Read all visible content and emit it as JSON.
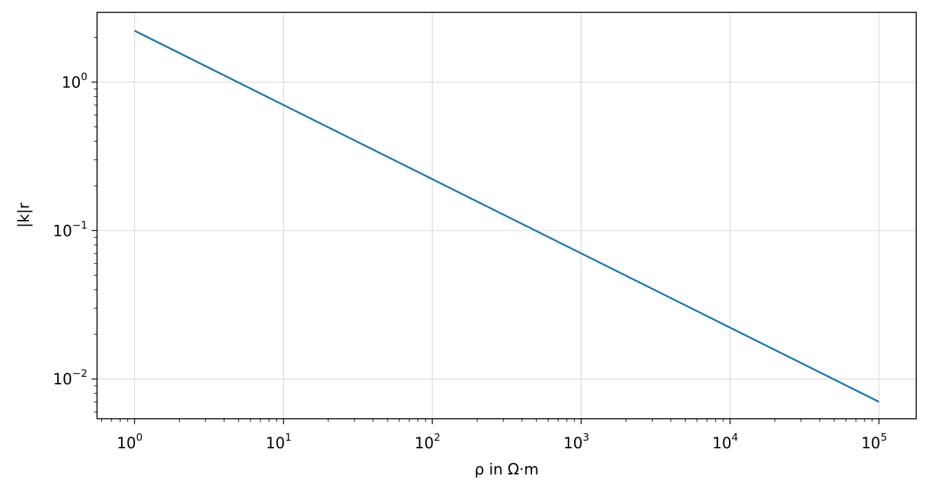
{
  "chart_data": {
    "type": "line",
    "title": "",
    "xlabel": "ρ in Ω·m",
    "ylabel": "|k|r",
    "xscale": "log",
    "yscale": "log",
    "xlim": [
      0.56,
      178000
    ],
    "ylim": [
      0.0054,
      2.95
    ],
    "grid": true,
    "legend": "none",
    "x_ticks": [
      {
        "value": 1,
        "base": "10",
        "exp": "0"
      },
      {
        "value": 10,
        "base": "10",
        "exp": "1"
      },
      {
        "value": 100,
        "base": "10",
        "exp": "2"
      },
      {
        "value": 1000,
        "base": "10",
        "exp": "3"
      },
      {
        "value": 10000,
        "base": "10",
        "exp": "4"
      },
      {
        "value": 100000,
        "base": "10",
        "exp": "5"
      }
    ],
    "y_ticks": [
      {
        "value": 0.01,
        "base": "10",
        "exp": "−2"
      },
      {
        "value": 0.1,
        "base": "10",
        "exp": "−1"
      },
      {
        "value": 1,
        "base": "10",
        "exp": "0"
      }
    ],
    "series": [
      {
        "color": "#1f77b4",
        "x": [
          1,
          10,
          100,
          1000,
          10000,
          100000
        ],
        "y": [
          2.22,
          0.702,
          0.222,
          0.0702,
          0.0222,
          0.00702
        ]
      }
    ]
  }
}
